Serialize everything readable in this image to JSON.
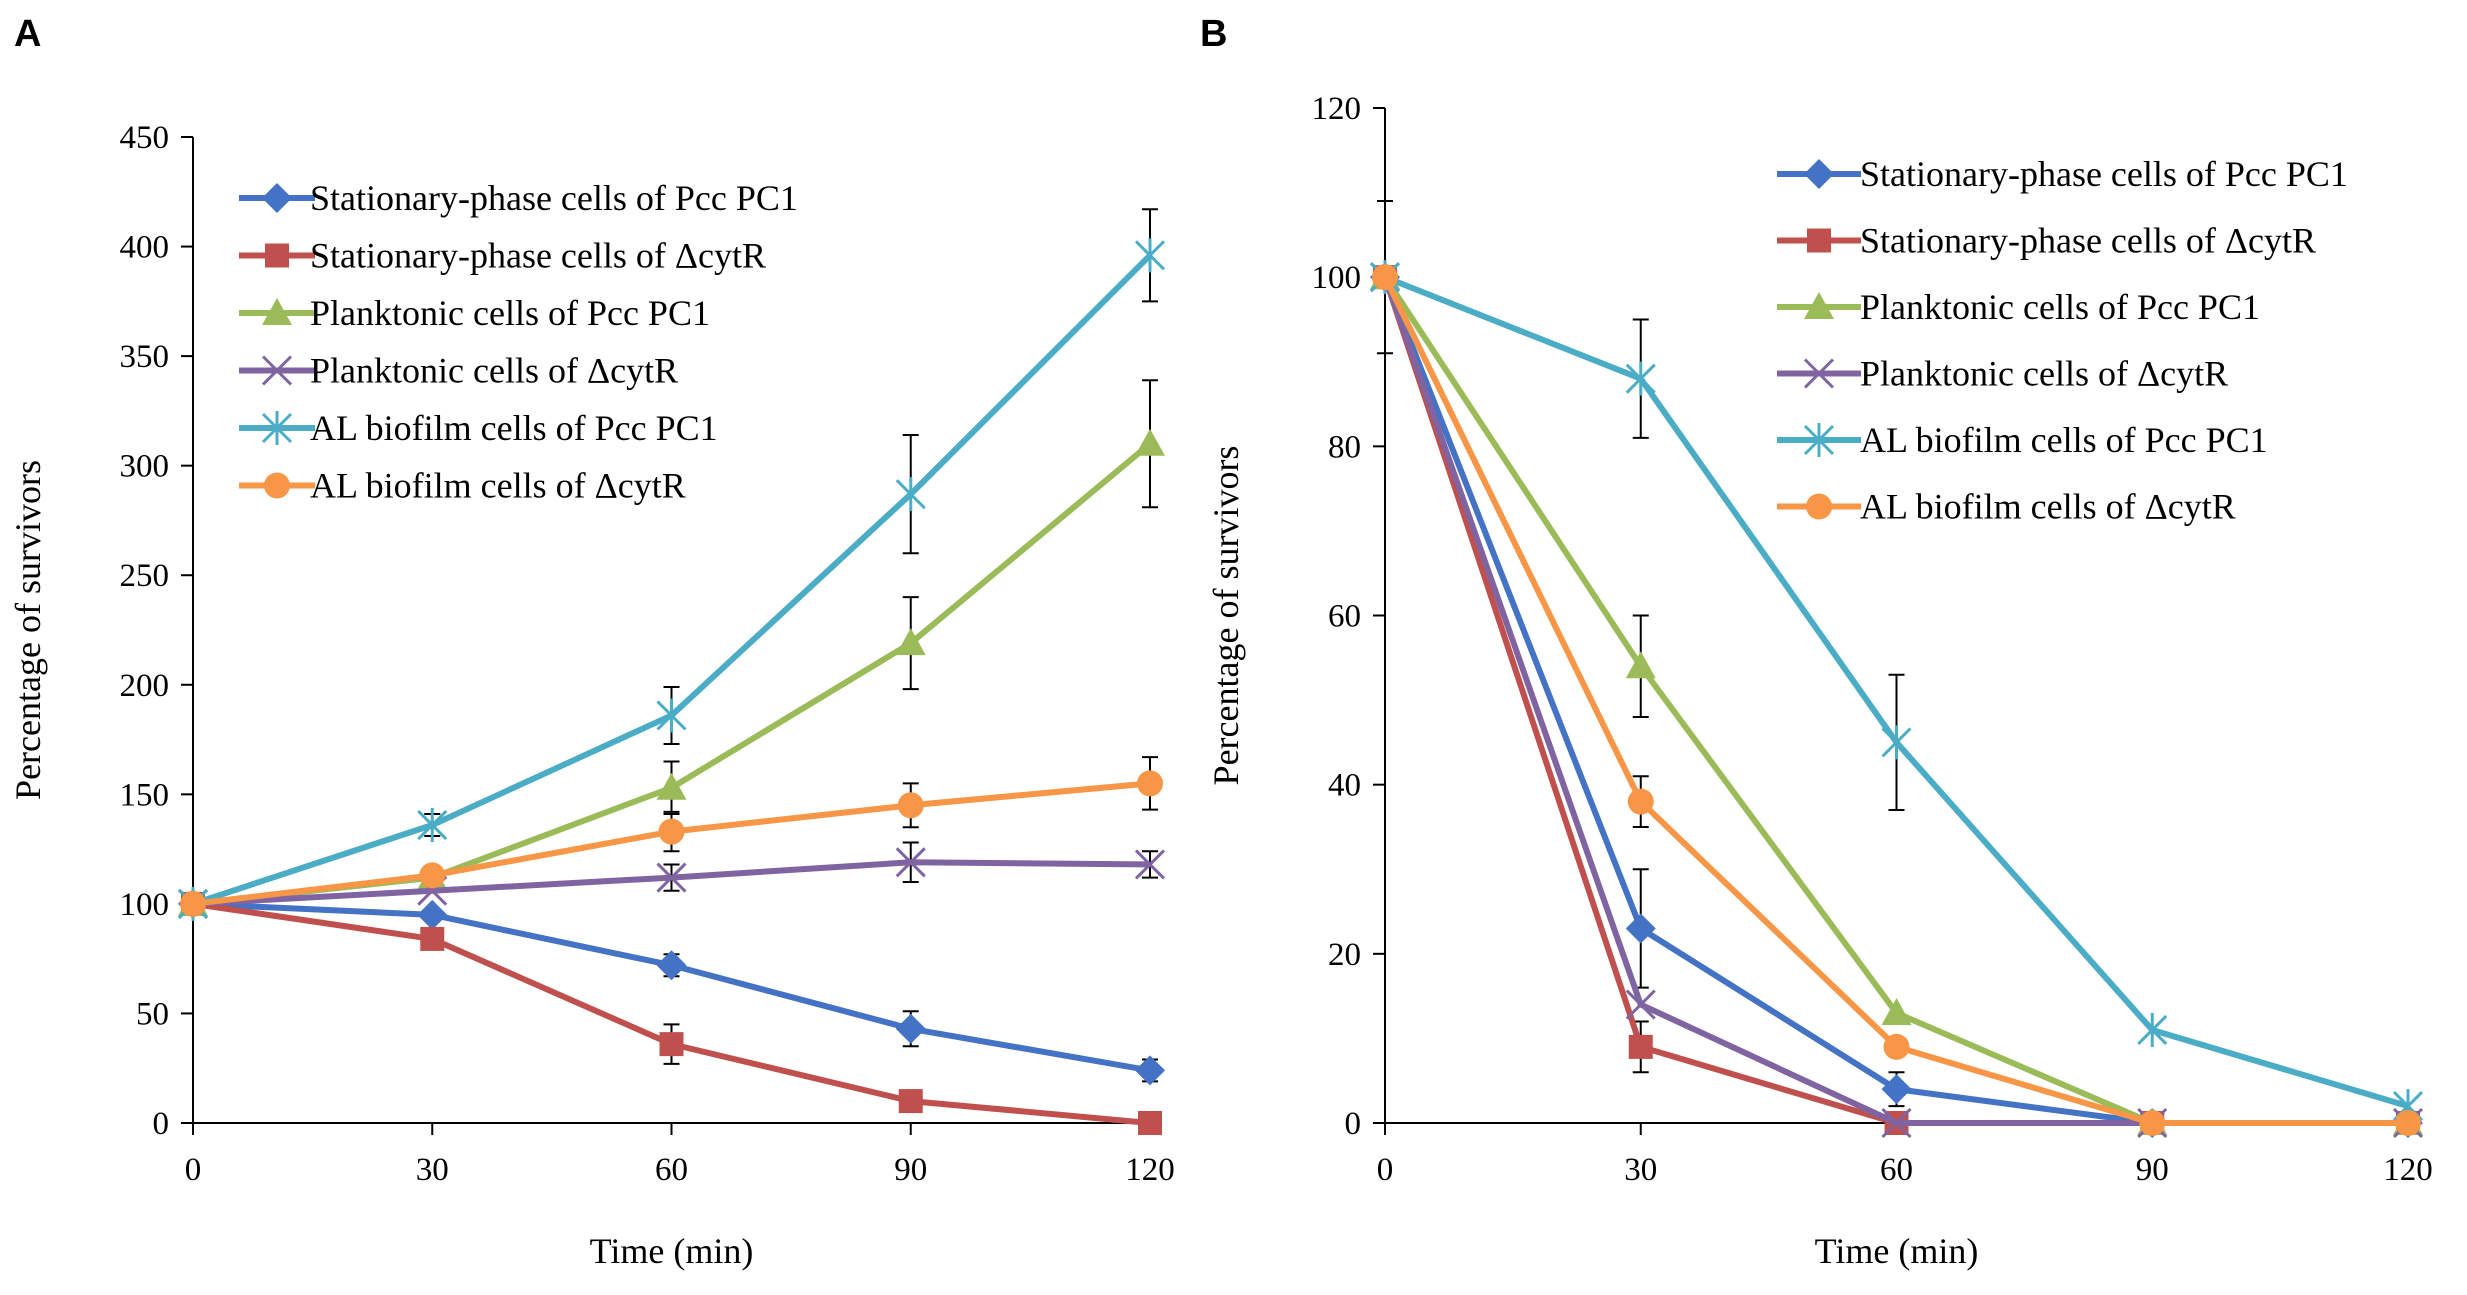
{
  "chart_data": [
    {
      "panel": "A",
      "type": "line",
      "xlabel": "Time (min)",
      "ylabel": "Percentage of survivors",
      "x": [
        0,
        30,
        60,
        90,
        120
      ],
      "xlim": [
        0,
        120
      ],
      "ylim": [
        0,
        450
      ],
      "xticks": [
        "0",
        "30",
        "60",
        "90",
        "120"
      ],
      "yticks": [
        "0",
        "50",
        "100",
        "150",
        "200",
        "250",
        "300",
        "350",
        "400",
        "450"
      ],
      "grid": false,
      "legend_position": "top-left",
      "series": [
        {
          "name": "Stationary-phase cells of Pcc PC1",
          "color": "#4472C4",
          "marker": "diamond",
          "values": [
            100,
            95,
            72,
            43,
            24
          ],
          "errors": [
            0,
            0,
            5,
            8,
            5
          ]
        },
        {
          "name": "Stationary-phase cells of  ΔcytR",
          "color": "#C0504D",
          "marker": "square",
          "values": [
            100,
            84,
            36,
            10,
            0
          ],
          "errors": [
            0,
            0,
            9,
            0,
            0
          ]
        },
        {
          "name": "Planktonic cells of Pcc PC1",
          "color": "#9BBB59",
          "marker": "triangle",
          "values": [
            100,
            112,
            153,
            219,
            310
          ],
          "errors": [
            0,
            0,
            12,
            21,
            29
          ]
        },
        {
          "name": "Planktonic cells of  ΔcytR",
          "color": "#8064A2",
          "marker": "x",
          "values": [
            100,
            106,
            112,
            119,
            118
          ],
          "errors": [
            0,
            0,
            6,
            9,
            6
          ]
        },
        {
          "name": "AL biofilm cells of Pcc PC1",
          "color": "#4BACC6",
          "marker": "star",
          "values": [
            100,
            136,
            186,
            287,
            396
          ],
          "errors": [
            0,
            5,
            13,
            27,
            21
          ]
        },
        {
          "name": "AL biofilm cells of  ΔcytR",
          "color": "#F79646",
          "marker": "circle",
          "values": [
            100,
            113,
            133,
            145,
            155
          ],
          "errors": [
            0,
            0,
            9,
            10,
            12
          ]
        }
      ]
    },
    {
      "panel": "B",
      "type": "line",
      "xlabel": "Time (min)",
      "ylabel": "Percentage of survivors",
      "x": [
        0,
        30,
        60,
        90,
        120
      ],
      "xlim": [
        0,
        120
      ],
      "ylim": [
        0,
        120
      ],
      "xticks": [
        "0",
        "30",
        "60",
        "90",
        "120"
      ],
      "yticks": [
        "0",
        "20",
        "40",
        "60",
        "80",
        "100",
        "120"
      ],
      "grid": false,
      "legend_position": "top-right",
      "series": [
        {
          "name": "Stationary-phase cells of Pcc PC1",
          "color": "#4472C4",
          "marker": "diamond",
          "values": [
            100,
            23,
            4,
            0,
            0
          ],
          "errors": [
            9,
            7,
            2,
            0,
            0
          ]
        },
        {
          "name": "Stationary-phase cells of ΔcytR",
          "color": "#C0504D",
          "marker": "square",
          "values": [
            100,
            9,
            0,
            0,
            0
          ],
          "errors": [
            0,
            3,
            0,
            0,
            0
          ]
        },
        {
          "name": "Planktonic cells of Pcc PC1",
          "color": "#9BBB59",
          "marker": "triangle",
          "values": [
            100,
            54,
            13,
            0,
            0
          ],
          "errors": [
            0,
            6,
            0,
            0,
            0
          ]
        },
        {
          "name": "Planktonic cells of ΔcytR",
          "color": "#8064A2",
          "marker": "x",
          "values": [
            100,
            14,
            0,
            0,
            0
          ],
          "errors": [
            0,
            0,
            0,
            0,
            0
          ]
        },
        {
          "name": "AL biofilm cells of Pcc PC1",
          "color": "#4BACC6",
          "marker": "star",
          "values": [
            100,
            88,
            45,
            11,
            2
          ],
          "errors": [
            0,
            7,
            8,
            0,
            0
          ]
        },
        {
          "name": "AL biofilm cells of ΔcytR",
          "color": "#F79646",
          "marker": "circle",
          "values": [
            100,
            38,
            9,
            0,
            0
          ],
          "errors": [
            0,
            3,
            0,
            0,
            0
          ]
        }
      ]
    }
  ]
}
